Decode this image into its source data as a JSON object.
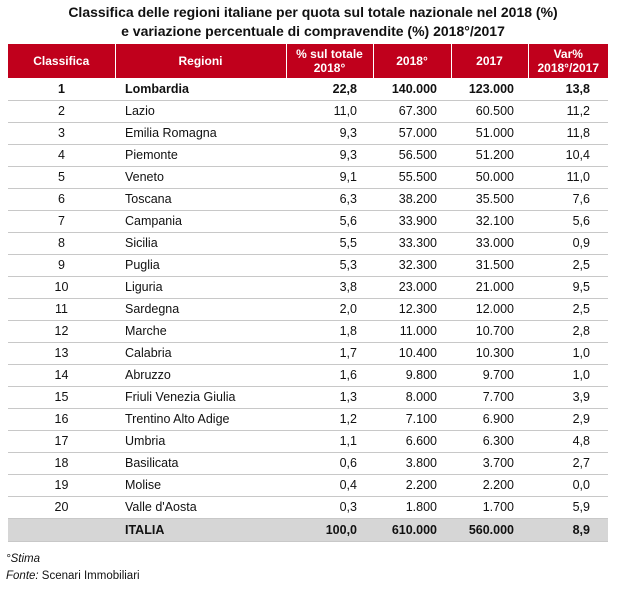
{
  "title": {
    "line1": "Classifica delle regioni italiane per quota sul totale nazionale nel 2018 (%)",
    "line2": "e variazione percentuale di compravendite (%) 2018°/2017"
  },
  "columns": {
    "rank": "Classifica",
    "region": "Regioni",
    "share_l1": "% sul totale",
    "share_l2": "2018°",
    "y2018": "2018°",
    "y2017": "2017",
    "var_l1": "Var%",
    "var_l2": "2018°/2017"
  },
  "rows": [
    {
      "rank": "1",
      "region": "Lombardia",
      "share": "22,8",
      "y2018": "140.000",
      "y2017": "123.000",
      "var": "13,8"
    },
    {
      "rank": "2",
      "region": "Lazio",
      "share": "11,0",
      "y2018": "67.300",
      "y2017": "60.500",
      "var": "11,2"
    },
    {
      "rank": "3",
      "region": "Emilia Romagna",
      "share": "9,3",
      "y2018": "57.000",
      "y2017": "51.000",
      "var": "11,8"
    },
    {
      "rank": "4",
      "region": "Piemonte",
      "share": "9,3",
      "y2018": "56.500",
      "y2017": "51.200",
      "var": "10,4"
    },
    {
      "rank": "5",
      "region": "Veneto",
      "share": "9,1",
      "y2018": "55.500",
      "y2017": "50.000",
      "var": "11,0"
    },
    {
      "rank": "6",
      "region": "Toscana",
      "share": "6,3",
      "y2018": "38.200",
      "y2017": "35.500",
      "var": "7,6"
    },
    {
      "rank": "7",
      "region": "Campania",
      "share": "5,6",
      "y2018": "33.900",
      "y2017": "32.100",
      "var": "5,6"
    },
    {
      "rank": "8",
      "region": "Sicilia",
      "share": "5,5",
      "y2018": "33.300",
      "y2017": "33.000",
      "var": "0,9"
    },
    {
      "rank": "9",
      "region": "Puglia",
      "share": "5,3",
      "y2018": "32.300",
      "y2017": "31.500",
      "var": "2,5"
    },
    {
      "rank": "10",
      "region": "Liguria",
      "share": "3,8",
      "y2018": "23.000",
      "y2017": "21.000",
      "var": "9,5"
    },
    {
      "rank": "11",
      "region": "Sardegna",
      "share": "2,0",
      "y2018": "12.300",
      "y2017": "12.000",
      "var": "2,5"
    },
    {
      "rank": "12",
      "region": "Marche",
      "share": "1,8",
      "y2018": "11.000",
      "y2017": "10.700",
      "var": "2,8"
    },
    {
      "rank": "13",
      "region": "Calabria",
      "share": "1,7",
      "y2018": "10.400",
      "y2017": "10.300",
      "var": "1,0"
    },
    {
      "rank": "14",
      "region": "Abruzzo",
      "share": "1,6",
      "y2018": "9.800",
      "y2017": "9.700",
      "var": "1,0"
    },
    {
      "rank": "15",
      "region": "Friuli Venezia Giulia",
      "share": "1,3",
      "y2018": "8.000",
      "y2017": "7.700",
      "var": "3,9"
    },
    {
      "rank": "16",
      "region": "Trentino Alto Adige",
      "share": "1,2",
      "y2018": "7.100",
      "y2017": "6.900",
      "var": "2,9"
    },
    {
      "rank": "17",
      "region": "Umbria",
      "share": "1,1",
      "y2018": "6.600",
      "y2017": "6.300",
      "var": "4,8"
    },
    {
      "rank": "18",
      "region": "Basilicata",
      "share": "0,6",
      "y2018": "3.800",
      "y2017": "3.700",
      "var": "2,7"
    },
    {
      "rank": "19",
      "region": "Molise",
      "share": "0,4",
      "y2018": "2.200",
      "y2017": "2.200",
      "var": "0,0"
    },
    {
      "rank": "20",
      "region": "Valle d'Aosta",
      "share": "0,3",
      "y2018": "1.800",
      "y2017": "1.700",
      "var": "5,9"
    }
  ],
  "total": {
    "region": "ITALIA",
    "share": "100,0",
    "y2018": "610.000",
    "y2017": "560.000",
    "var": "8,9"
  },
  "notes": {
    "estimate": "°Stima",
    "source_label": "Fonte:",
    "source_value": " Scenari Immobiliari"
  },
  "colors": {
    "header_bg": "#c0001c",
    "total_bg": "#d6d6d6"
  }
}
